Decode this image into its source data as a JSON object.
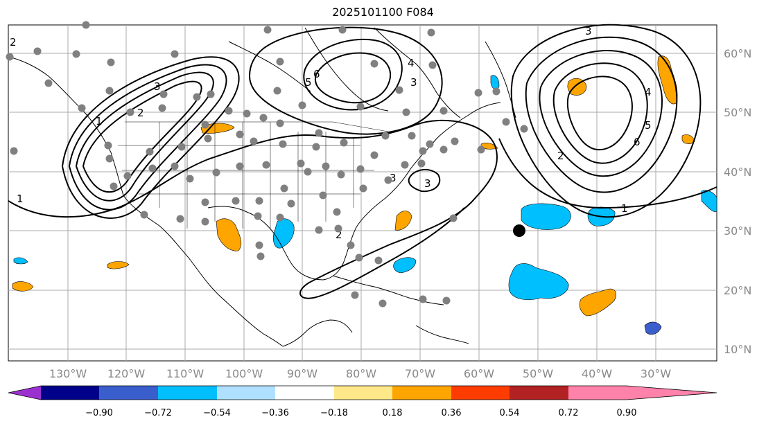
{
  "title": "2025101100 F084",
  "map": {
    "lon_labels": [
      "130°W",
      "120°W",
      "110°W",
      "100°W",
      "90°W",
      "80°W",
      "70°W",
      "60°W",
      "50°W",
      "40°W",
      "30°W"
    ],
    "lat_labels": [
      "60°N",
      "50°N",
      "40°N",
      "30°N",
      "20°N",
      "10°N"
    ],
    "contour_labels": [
      "2",
      "4",
      "3",
      "5",
      "6",
      "3",
      "2",
      "3",
      "1",
      "1",
      "3",
      "2",
      "4",
      "5",
      "6",
      "1",
      "2",
      "3"
    ],
    "colors": {
      "land_outline": "#000000",
      "grid": "#aaaaaa",
      "station_dot": "#808080",
      "marker": "#000000"
    }
  },
  "colorbar": {
    "ticks": [
      "−0.90",
      "−0.72",
      "−0.54",
      "−0.36",
      "−0.18",
      "0.18",
      "0.36",
      "0.54",
      "0.72",
      "0.90"
    ],
    "colors": [
      "#9b30d0",
      "#00008b",
      "#3a5fcd",
      "#00bfff",
      "#b0e0ff",
      "#ffffff",
      "#ffe88a",
      "#ffa500",
      "#ff3c00",
      "#b22222",
      "#ff82ab"
    ]
  }
}
